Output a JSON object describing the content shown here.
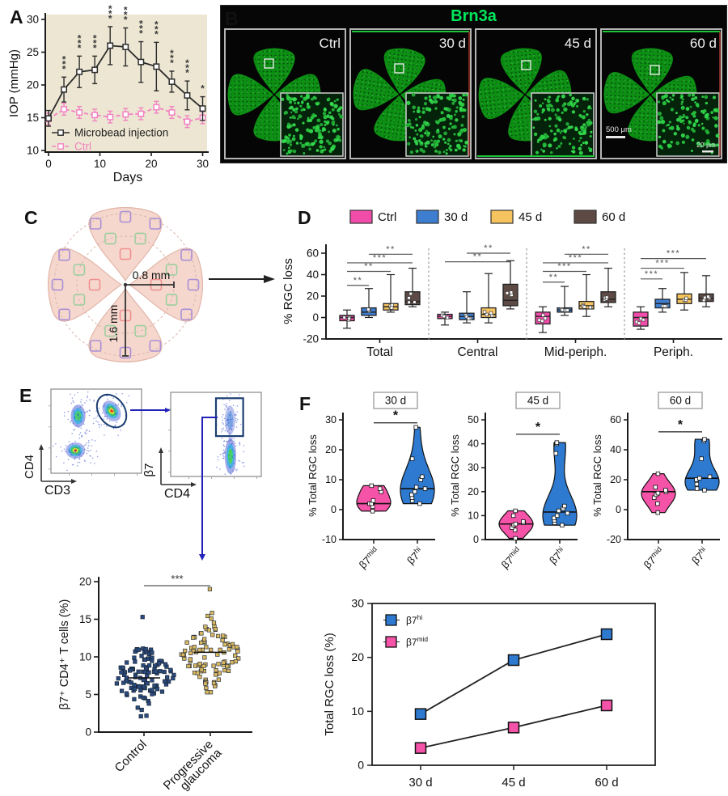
{
  "panels": {
    "a": "A",
    "b": "B",
    "c": "C",
    "d": "D",
    "e": "E",
    "f": "F"
  },
  "colors": {
    "panel_a_bg": "#ece6d2",
    "microbead": "#2b2b2b",
    "ctrl_pink": "#f283c2",
    "d_ctrl": "#f14ca9",
    "d_30": "#3d7ed1",
    "d_45": "#f6c45e",
    "d_60": "#5d4a45",
    "e_control": "#2b4a7d",
    "e_glaucoma": "#d8b763",
    "f_pink": "#f553a8",
    "f_blue": "#2e7ad0",
    "brn3a_green": "#00e65a",
    "gate_blue": "#1d3f73",
    "arrow_blue": "#2222bb"
  },
  "panel_b": {
    "title": "Brn3a",
    "images": [
      {
        "label": "Ctrl"
      },
      {
        "label": "30 d"
      },
      {
        "label": "45 d"
      },
      {
        "label": "60 d"
      }
    ],
    "scale_main": "500 μm",
    "scale_inset": "20 μm"
  },
  "panel_c": {
    "dim_horizontal": "0.8 mm",
    "dim_vertical": "1.6 mm"
  },
  "panel_e_flow": {
    "plot1": {
      "xlabel": "CD3",
      "ylabel": "CD4"
    },
    "plot2": {
      "xlabel": "CD4",
      "ylabel": "β7"
    }
  },
  "chart_data": [
    {
      "id": "iop",
      "type": "line",
      "xlabel": "Days",
      "ylabel": "IOP (mmHg)",
      "ylim": [
        10,
        31
      ],
      "yticks": [
        10,
        15,
        20,
        25,
        30
      ],
      "xticks": [
        0,
        10,
        20,
        30
      ],
      "x": [
        0,
        3,
        6,
        9,
        12,
        15,
        18,
        21,
        24,
        27,
        30
      ],
      "series": [
        {
          "name": "Microbead injection",
          "color": "#2b2b2b",
          "dashed": false,
          "values": [
            14.9,
            19.3,
            22,
            22.3,
            26,
            25.8,
            23.5,
            22.8,
            20.5,
            18.4,
            16.4
          ],
          "err": [
            1.2,
            1.9,
            2.4,
            2.1,
            2.9,
            2.9,
            3.1,
            3.7,
            1.6,
            2.2,
            1.8
          ]
        },
        {
          "name": "Ctrl",
          "color": "#f283c2",
          "dashed": true,
          "values": [
            14.8,
            16.3,
            15.8,
            15.4,
            15.1,
            15.5,
            15.6,
            16.6,
            15.8,
            14.4,
            15
          ],
          "err": [
            0.9,
            0.9,
            0.9,
            0.9,
            0.9,
            0.9,
            0.9,
            0.9,
            0.9,
            0.9,
            0.9
          ]
        }
      ],
      "sig": [
        "",
        "***",
        "***",
        "***",
        "***",
        "***",
        "***",
        "***",
        "***",
        "***",
        "*"
      ]
    },
    {
      "id": "rgc_box",
      "type": "box",
      "ylabel": "% RGC loss",
      "ylim": [
        -20,
        60
      ],
      "yticks": [
        -20,
        0,
        20,
        40,
        60
      ],
      "categories": [
        "Total",
        "Central",
        "Mid-periph.",
        "Periph."
      ],
      "series": [
        {
          "name": "Ctrl",
          "color": "#f14ca9",
          "boxes": [
            [
              -10,
              -3,
              0,
              2,
              7
            ],
            [
              -7,
              -1,
              1,
              3,
              5
            ],
            [
              -14,
              -6,
              1,
              5,
              10
            ],
            [
              -11,
              -8,
              0,
              5,
              10
            ]
          ]
        },
        {
          "name": "30 d",
          "color": "#3d7ed1",
          "boxes": [
            [
              0,
              2,
              5,
              9,
              27
            ],
            [
              -5,
              -2,
              1,
              4,
              24
            ],
            [
              2,
              5,
              7,
              9,
              29
            ],
            [
              5,
              9,
              13,
              17,
              27
            ]
          ]
        },
        {
          "name": "45 d",
          "color": "#f6c45e",
          "boxes": [
            [
              5,
              7,
              10,
              13,
              40
            ],
            [
              -5,
              0,
              3,
              9,
              41
            ],
            [
              1,
              8,
              11,
              15,
              40
            ],
            [
              7,
              13,
              17,
              22,
              42
            ]
          ]
        },
        {
          "name": "60 d",
          "color": "#5d4a45",
          "boxes": [
            [
              10,
              12,
              15,
              24,
              46
            ],
            [
              8,
              11,
              16,
              31,
              53
            ],
            [
              10,
              14,
              17,
              24,
              46
            ],
            [
              10,
              15,
              18,
              22,
              39
            ]
          ]
        }
      ],
      "sig": [
        [
          [
            0,
            1,
            30,
            "**"
          ],
          [
            0,
            2,
            43,
            "**"
          ],
          [
            0,
            3,
            51,
            "***"
          ],
          [
            1,
            3,
            59,
            "**"
          ]
        ],
        [
          [
            0,
            3,
            52,
            "**"
          ],
          [
            1,
            3,
            60,
            "**"
          ]
        ],
        [
          [
            0,
            1,
            33,
            "**"
          ],
          [
            0,
            2,
            43,
            "***"
          ],
          [
            0,
            3,
            51,
            "***"
          ],
          [
            1,
            3,
            59,
            "**"
          ]
        ],
        [
          [
            0,
            1,
            36,
            "***"
          ],
          [
            0,
            2,
            46,
            "***"
          ],
          [
            0,
            3,
            55,
            "***"
          ]
        ]
      ]
    },
    {
      "id": "beeswarm",
      "type": "scatter",
      "ylabel": "β7⁺ CD4⁺ T cells (%)",
      "ylim": [
        0,
        20
      ],
      "yticks": [
        0,
        5,
        10,
        15,
        20
      ],
      "sig": "***",
      "groups": [
        {
          "label_lines": [
            "Control"
          ],
          "color": "#2b4a7d",
          "n": 115,
          "center": 7.2,
          "sd": 2.1,
          "min": 2.1,
          "max": 15.3,
          "median": 7.2,
          "seed": 7
        },
        {
          "label_lines": [
            "Progressive",
            "glaucoma"
          ],
          "color": "#d8b763",
          "n": 100,
          "center": 10.3,
          "sd": 2.1,
          "min": 5.3,
          "max": 19,
          "median": 10.6,
          "seed": 13
        }
      ]
    },
    {
      "id": "violin30",
      "type": "violin",
      "title": "30 d",
      "ylabel": "% Total RGC loss",
      "ylim": [
        -10,
        30
      ],
      "yticks": [
        -10,
        0,
        10,
        20,
        30
      ],
      "sig": "*",
      "sig_y": 29,
      "groups": [
        {
          "label": {
            "base": "β7",
            "sup": "mid"
          },
          "color": "#f553a8",
          "median": 2,
          "points": [
            -0.5,
            1,
            2,
            2,
            3,
            6,
            7,
            8
          ]
        },
        {
          "label": {
            "base": "β7",
            "sup": "hi"
          },
          "color": "#2e7ad0",
          "median": 7,
          "points": [
            2,
            3,
            4,
            5,
            6,
            7,
            7.5,
            10,
            11,
            17,
            27.5
          ]
        }
      ]
    },
    {
      "id": "violin45",
      "type": "violin",
      "title": "45 d",
      "ylabel": "% Total RGC loss",
      "ylim": [
        0,
        50
      ],
      "yticks": [
        0,
        10,
        20,
        30,
        40,
        50
      ],
      "sig": "*",
      "sig_y": 44,
      "groups": [
        {
          "label": {
            "base": "β7",
            "sup": "mid"
          },
          "color": "#f553a8",
          "median": 6.5,
          "points": [
            0.5,
            4,
            5,
            6,
            6.5,
            7,
            7.5,
            10,
            12
          ]
        },
        {
          "label": {
            "base": "β7",
            "sup": "hi"
          },
          "color": "#2e7ad0",
          "median": 11.5,
          "points": [
            6,
            7,
            8,
            9,
            10,
            11,
            12,
            13,
            14,
            36,
            40,
            40.5
          ]
        }
      ]
    },
    {
      "id": "violin60",
      "type": "violin",
      "title": "60 d",
      "ylabel": "% Total RGC loss",
      "ylim": [
        -20,
        60
      ],
      "yticks": [
        -20,
        0,
        20,
        40,
        60
      ],
      "sig": "*",
      "sig_y": 52,
      "groups": [
        {
          "label": {
            "base": "β7",
            "sup": "mid"
          },
          "color": "#f553a8",
          "median": 12,
          "points": [
            -2,
            4,
            8,
            10,
            11,
            12,
            13,
            15,
            24
          ]
        },
        {
          "label": {
            "base": "β7",
            "sup": "hi"
          },
          "color": "#2e7ad0",
          "median": 21,
          "points": [
            13,
            14,
            17,
            20,
            21,
            22,
            34,
            46,
            47
          ]
        }
      ]
    },
    {
      "id": "rgc_line",
      "type": "line",
      "ylabel": "Total RGC loss (%)",
      "ylim": [
        0,
        30
      ],
      "yticks": [
        0,
        10,
        20,
        30
      ],
      "categories": [
        "30 d",
        "45 d",
        "60 d"
      ],
      "series": [
        {
          "name": {
            "base": "β7",
            "sup": "hi"
          },
          "color": "#2e7ad0",
          "values": [
            9.5,
            19.5,
            24.3
          ]
        },
        {
          "name": {
            "base": "β7",
            "sup": "mid"
          },
          "color": "#f553a8",
          "values": [
            3.2,
            7,
            11.1
          ]
        }
      ]
    }
  ]
}
